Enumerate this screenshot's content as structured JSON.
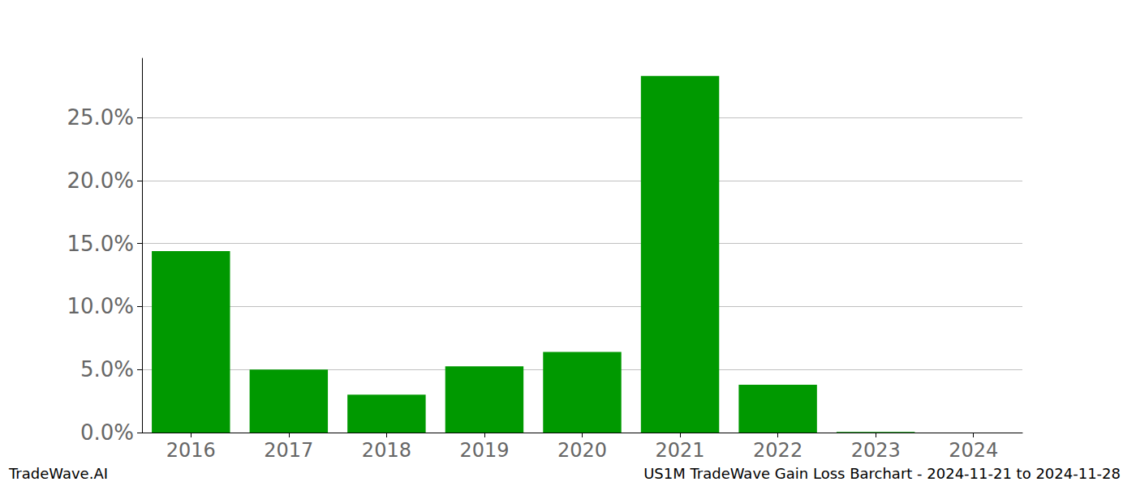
{
  "chart_data": {
    "type": "bar",
    "title": "US1M TradeWave Gain Loss Barchart - 2024-11-21 to 2024-11-28",
    "annotations": [
      "TradeWave.AI"
    ],
    "categories": [
      "2016",
      "2017",
      "2018",
      "2019",
      "2020",
      "2021",
      "2022",
      "2023",
      "2024"
    ],
    "values": [
      14.4,
      5.0,
      3.0,
      5.25,
      6.4,
      28.3,
      3.8,
      0.05,
      0.0
    ],
    "color": "#009900",
    "ylim": [
      0,
      29.7
    ],
    "yticks": [
      {
        "value": 0,
        "label": "0.0%"
      },
      {
        "value": 5,
        "label": "5.0%"
      },
      {
        "value": 10,
        "label": "10.0%"
      },
      {
        "value": 15,
        "label": "15.0%"
      },
      {
        "value": 20,
        "label": "20.0%"
      },
      {
        "value": 25,
        "label": "25.0%"
      }
    ],
    "grid": true
  }
}
